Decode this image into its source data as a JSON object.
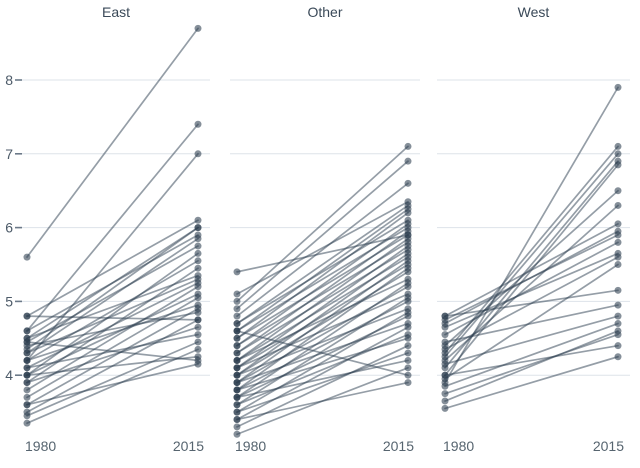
{
  "figure": {
    "kind": "slopegraph",
    "background": "#ffffff"
  },
  "chart_data": {
    "type": "line",
    "subtype": "slopegraph",
    "x": [
      "1980",
      "2015"
    ],
    "y_ticks": [
      4,
      5,
      6,
      7,
      8
    ],
    "ylim": [
      3.1,
      8.85
    ],
    "grid": true,
    "legend": "none",
    "title": "",
    "xlabel": "",
    "ylabel": "",
    "colors": {
      "line": "#2C3E50",
      "line_alpha": 0.5,
      "dot": "#2C3E50",
      "dot_alpha": 0.58,
      "gridline": "#DDE3E9",
      "tick_mark": "#6B7988",
      "y_tick_label": "#4C5A68",
      "x_tick_label": "#56646F",
      "panel_title": "#3A4958"
    },
    "panels": [
      {
        "title": "East",
        "series": [
          [
            5.6,
            8.7
          ],
          [
            4.6,
            7.4
          ],
          [
            4.2,
            7.0
          ],
          [
            4.8,
            6.1
          ],
          [
            4.5,
            6.0
          ],
          [
            4.35,
            6.0
          ],
          [
            4.6,
            5.9
          ],
          [
            4.3,
            5.85
          ],
          [
            4.45,
            5.75
          ],
          [
            4.0,
            5.65
          ],
          [
            4.2,
            5.55
          ],
          [
            3.9,
            5.45
          ],
          [
            4.5,
            5.35
          ],
          [
            4.3,
            5.3
          ],
          [
            4.1,
            5.25
          ],
          [
            3.8,
            5.2
          ],
          [
            4.0,
            5.1
          ],
          [
            3.7,
            5.05
          ],
          [
            4.2,
            4.95
          ],
          [
            3.6,
            4.9
          ],
          [
            4.4,
            4.85
          ],
          [
            3.5,
            4.75
          ],
          [
            4.8,
            4.75
          ],
          [
            3.9,
            4.65
          ],
          [
            4.1,
            4.55
          ],
          [
            3.45,
            4.45
          ],
          [
            3.35,
            4.35
          ],
          [
            4.0,
            4.25
          ],
          [
            4.45,
            4.2
          ],
          [
            3.6,
            4.15
          ]
        ]
      },
      {
        "title": "Other",
        "series": [
          [
            5.4,
            5.9
          ],
          [
            5.0,
            7.1
          ],
          [
            4.9,
            6.9
          ],
          [
            4.8,
            6.6
          ],
          [
            5.1,
            6.35
          ],
          [
            4.7,
            6.3
          ],
          [
            4.6,
            6.25
          ],
          [
            4.5,
            6.2
          ],
          [
            4.7,
            6.1
          ],
          [
            4.4,
            6.05
          ],
          [
            4.6,
            6.0
          ],
          [
            4.3,
            5.95
          ],
          [
            4.5,
            5.9
          ],
          [
            4.2,
            5.85
          ],
          [
            4.4,
            5.8
          ],
          [
            4.1,
            5.75
          ],
          [
            4.3,
            5.7
          ],
          [
            4.0,
            5.65
          ],
          [
            4.2,
            5.6
          ],
          [
            3.9,
            5.55
          ],
          [
            4.1,
            5.5
          ],
          [
            3.8,
            5.45
          ],
          [
            4.0,
            5.4
          ],
          [
            4.2,
            5.3
          ],
          [
            3.7,
            5.25
          ],
          [
            3.9,
            5.2
          ],
          [
            4.1,
            5.1
          ],
          [
            3.6,
            5.05
          ],
          [
            3.8,
            5.0
          ],
          [
            4.0,
            4.9
          ],
          [
            3.5,
            4.85
          ],
          [
            3.7,
            4.8
          ],
          [
            3.9,
            4.7
          ],
          [
            3.4,
            4.65
          ],
          [
            3.6,
            4.55
          ],
          [
            3.8,
            4.5
          ],
          [
            3.3,
            4.4
          ],
          [
            3.5,
            4.3
          ],
          [
            3.7,
            4.2
          ],
          [
            3.2,
            4.1
          ],
          [
            4.6,
            4.0
          ],
          [
            3.4,
            3.9
          ]
        ]
      },
      {
        "title": "West",
        "series": [
          [
            3.9,
            7.9
          ],
          [
            4.3,
            7.1
          ],
          [
            4.25,
            7.0
          ],
          [
            4.1,
            6.9
          ],
          [
            4.0,
            6.85
          ],
          [
            4.4,
            6.5
          ],
          [
            4.2,
            6.3
          ],
          [
            4.8,
            6.05
          ],
          [
            4.7,
            5.95
          ],
          [
            4.75,
            5.9
          ],
          [
            4.55,
            5.8
          ],
          [
            4.65,
            5.65
          ],
          [
            4.35,
            5.6
          ],
          [
            3.95,
            5.5
          ],
          [
            4.8,
            5.15
          ],
          [
            4.45,
            4.95
          ],
          [
            4.15,
            4.8
          ],
          [
            3.85,
            4.7
          ],
          [
            3.65,
            4.6
          ],
          [
            3.75,
            4.55
          ],
          [
            4.0,
            4.4
          ],
          [
            3.55,
            4.25
          ]
        ]
      }
    ]
  }
}
